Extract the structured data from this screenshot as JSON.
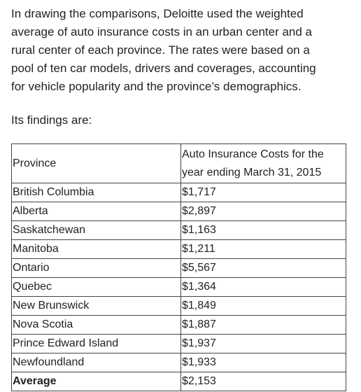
{
  "intro": {
    "lines": [
      "In drawing the comparisons, Deloitte used the weighted",
      "average of auto insurance costs in an urban center and a",
      "rural center of each province. The rates were based on a",
      "pool of ten car models, drivers and coverages, accounting",
      "for vehicle popularity and the province’s demographics."
    ]
  },
  "findings_label": "Its findings are:",
  "table": {
    "header": [
      "Province",
      "Auto Insurance Costs for the year ending March 31, 2015"
    ],
    "rows": [
      [
        "British Columbia",
        "$1,717"
      ],
      [
        "Alberta",
        "$2,897"
      ],
      [
        "Saskatchewan",
        "$1,163"
      ],
      [
        "Manitoba",
        "$1,211"
      ],
      [
        "Ontario",
        "$5,567"
      ],
      [
        "Quebec",
        "$1,364"
      ],
      [
        "New Brunswick",
        "$1,849"
      ],
      [
        "Nova Scotia",
        "$1,887"
      ],
      [
        "Prince Edward Island",
        "$1,937"
      ],
      [
        "Newfoundland",
        "$1,933"
      ],
      [
        "Average",
        "$2,153"
      ]
    ]
  }
}
